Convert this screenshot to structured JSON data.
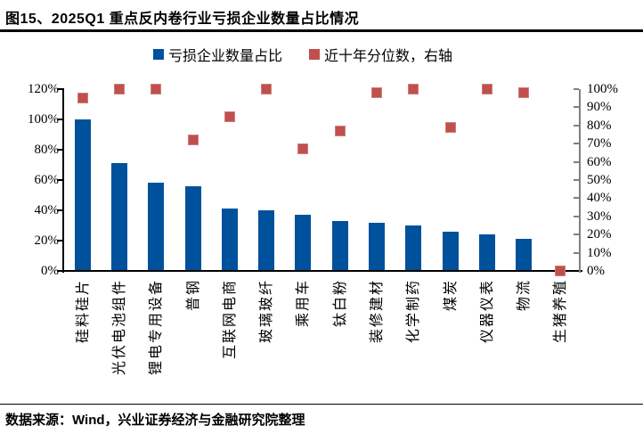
{
  "page": {
    "title": "图15、2025Q1 重点反内卷行业亏损企业数量占比情况",
    "source": "数据来源：Wind，兴业证券经济与金融研究院整理"
  },
  "colors": {
    "bar_blue": "#00519C",
    "marker_red": "#C0504D",
    "marker_red_border": "#CE7E7B",
    "axis_black": "#000000",
    "right_axis_gray": "#808080",
    "background": "#FFFFFF"
  },
  "legend": {
    "position": "top-center",
    "items": [
      {
        "label": "亏损企业数量占比",
        "marker": "square",
        "color": "#00519C"
      },
      {
        "label": "近十年分位数，右轴",
        "marker": "square",
        "color": "#C0504D"
      }
    ]
  },
  "chart_data": {
    "type": "bar",
    "title": "2025Q1 重点反内卷行业亏损企业数量占比情况",
    "categories": [
      "硅料硅片",
      "光伏电池组件",
      "锂电专用设备",
      "普钢",
      "互联网电商",
      "玻璃玻纤",
      "乘用车",
      "钛白粉",
      "装修建材",
      "化学制药",
      "煤炭",
      "仪器仪表",
      "物流",
      "生猪养殖"
    ],
    "series": [
      {
        "name": "亏损企业数量占比",
        "type": "bar",
        "axis": "left",
        "color": "#00519C",
        "values": [
          100,
          71,
          58,
          56,
          41,
          40,
          37,
          33,
          32,
          30,
          26,
          24,
          21,
          0
        ]
      },
      {
        "name": "近十年分位数，右轴",
        "type": "scatter",
        "marker": "square",
        "axis": "right",
        "color": "#C0504D",
        "values": [
          95,
          100,
          100,
          72,
          85,
          100,
          67,
          77,
          98,
          100,
          79,
          100,
          98,
          0
        ]
      }
    ],
    "left_axis": {
      "range": [
        0,
        120
      ],
      "step": 20,
      "unit": "%",
      "labels": [
        "0%",
        "20%",
        "40%",
        "60%",
        "80%",
        "100%",
        "120%"
      ]
    },
    "right_axis": {
      "range": [
        0,
        100
      ],
      "step": 10,
      "unit": "%",
      "labels": [
        "0%",
        "10%",
        "20%",
        "30%",
        "40%",
        "50%",
        "60%",
        "70%",
        "80%",
        "90%",
        "100%"
      ]
    },
    "grid": false,
    "legend_position": "top",
    "category_label_rotation": -90
  }
}
